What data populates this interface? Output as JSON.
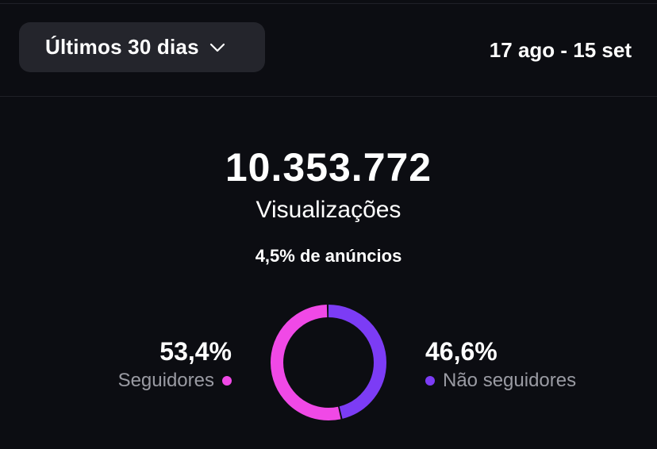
{
  "header": {
    "range_selector": {
      "label": "Últimos 30 dias",
      "icon": "chevron-down-icon"
    },
    "date_range": "17 ago - 15 set"
  },
  "summary": {
    "total_views": "10.353.772",
    "total_label": "Visualizações",
    "ads_share": "4,5% de anúncios"
  },
  "breakdown": {
    "followers": {
      "value": "53,4%",
      "label": "Seguidores",
      "fraction": 0.534,
      "color": "#f049e6"
    },
    "non_followers": {
      "value": "46,6%",
      "label": "Não seguidores",
      "fraction": 0.466,
      "color": "#7c3cf5"
    }
  }
}
